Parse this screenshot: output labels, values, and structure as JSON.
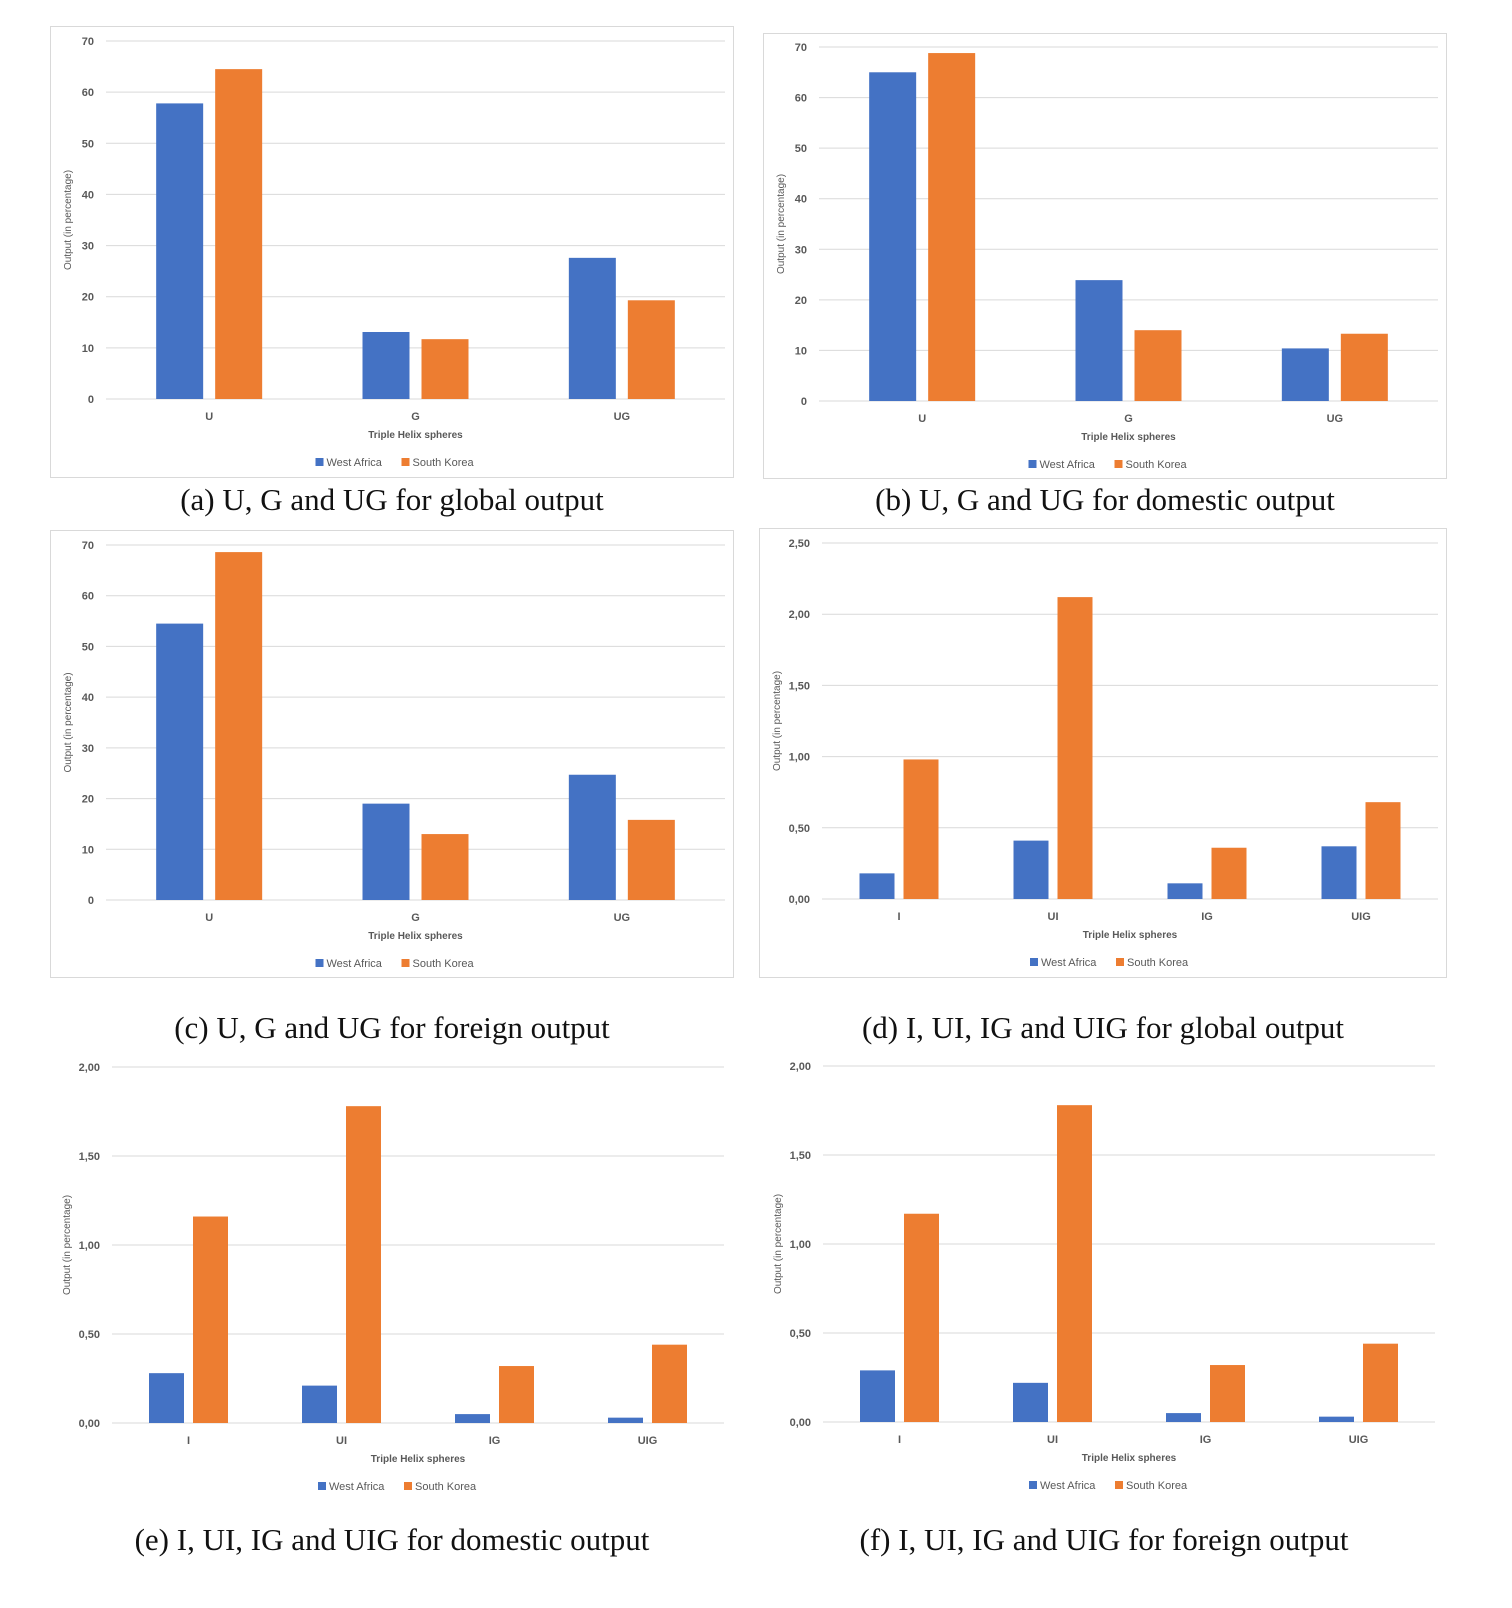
{
  "colors": {
    "west_africa": "#4472C4",
    "south_korea": "#ED7D31",
    "grid": "#d9d9d9",
    "text": "#595959"
  },
  "panels": [
    {
      "caption": "(a) U, G and UG for global output"
    },
    {
      "caption": "(b) U, G and UG for domestic output"
    },
    {
      "caption": "(c) U, G and UG for foreign output"
    },
    {
      "caption": "(d) I, UI, IG and UIG for global output"
    },
    {
      "caption": "(e) I, UI, IG and UIG for domestic output"
    },
    {
      "caption": "(f) I, UI, IG and UIG for foreign output"
    }
  ],
  "chart_data": [
    {
      "type": "bar",
      "categories": [
        "U",
        "G",
        "UG"
      ],
      "series": [
        {
          "name": "West Africa",
          "values": [
            57.8,
            13.1,
            27.6
          ]
        },
        {
          "name": "South Korea",
          "values": [
            64.5,
            11.7,
            19.3
          ]
        }
      ],
      "xlabel": "Triple Helix spheres",
      "ylabel": "Output (in percentage)",
      "ylim": [
        0,
        70
      ],
      "yticks": [
        "0",
        "10",
        "20",
        "30",
        "40",
        "50",
        "60",
        "70"
      ],
      "grid": true,
      "legend": "bottom"
    },
    {
      "type": "bar",
      "categories": [
        "U",
        "G",
        "UG"
      ],
      "series": [
        {
          "name": "West Africa",
          "values": [
            65.0,
            23.9,
            10.4
          ]
        },
        {
          "name": "South Korea",
          "values": [
            68.8,
            14.0,
            13.3
          ]
        }
      ],
      "xlabel": "Triple Helix spheres",
      "ylabel": "Output (in percentage)",
      "ylim": [
        0,
        70
      ],
      "yticks": [
        "0",
        "10",
        "20",
        "30",
        "40",
        "50",
        "60",
        "70"
      ],
      "grid": true,
      "legend": "bottom"
    },
    {
      "type": "bar",
      "categories": [
        "U",
        "G",
        "UG"
      ],
      "series": [
        {
          "name": "West Africa",
          "values": [
            54.5,
            19.0,
            24.7
          ]
        },
        {
          "name": "South Korea",
          "values": [
            68.6,
            13.0,
            15.8
          ]
        }
      ],
      "xlabel": "Triple Helix spheres",
      "ylabel": "Output (in percentage)",
      "ylim": [
        0,
        70
      ],
      "yticks": [
        "0",
        "10",
        "20",
        "30",
        "40",
        "50",
        "60",
        "70"
      ],
      "grid": true,
      "legend": "bottom"
    },
    {
      "type": "bar",
      "categories": [
        "I",
        "UI",
        "IG",
        "UIG"
      ],
      "series": [
        {
          "name": "West Africa",
          "values": [
            0.18,
            0.41,
            0.11,
            0.37
          ]
        },
        {
          "name": "South Korea",
          "values": [
            0.98,
            2.12,
            0.36,
            0.68
          ]
        }
      ],
      "xlabel": "Triple Helix spheres",
      "ylabel": "Output (in percentage)",
      "ylim": [
        0,
        2.5
      ],
      "yticks": [
        "0,00",
        "0,50",
        "1,00",
        "1,50",
        "2,00",
        "2,50"
      ],
      "grid": true,
      "legend": "bottom"
    },
    {
      "type": "bar",
      "categories": [
        "I",
        "UI",
        "IG",
        "UIG"
      ],
      "series": [
        {
          "name": "West Africa",
          "values": [
            0.28,
            0.21,
            0.05,
            0.03
          ]
        },
        {
          "name": "South Korea",
          "values": [
            1.16,
            1.78,
            0.32,
            0.44
          ]
        }
      ],
      "xlabel": "Triple Helix spheres",
      "ylabel": "Output (in percentage)",
      "ylim": [
        0,
        2.0
      ],
      "yticks": [
        "0,00",
        "0,50",
        "1,00",
        "1,50",
        "2,00"
      ],
      "grid": true,
      "legend": "bottom"
    },
    {
      "type": "bar",
      "categories": [
        "I",
        "UI",
        "IG",
        "UIG"
      ],
      "series": [
        {
          "name": "West Africa",
          "values": [
            0.29,
            0.22,
            0.05,
            0.03
          ]
        },
        {
          "name": "South Korea",
          "values": [
            1.17,
            1.78,
            0.32,
            0.44
          ]
        }
      ],
      "xlabel": "Triple Helix spheres",
      "ylabel": "Output (in percentage)",
      "ylim": [
        0,
        2.0
      ],
      "yticks": [
        "0,00",
        "0,50",
        "1,00",
        "1,50",
        "2,00"
      ],
      "grid": true,
      "legend": "bottom"
    }
  ]
}
